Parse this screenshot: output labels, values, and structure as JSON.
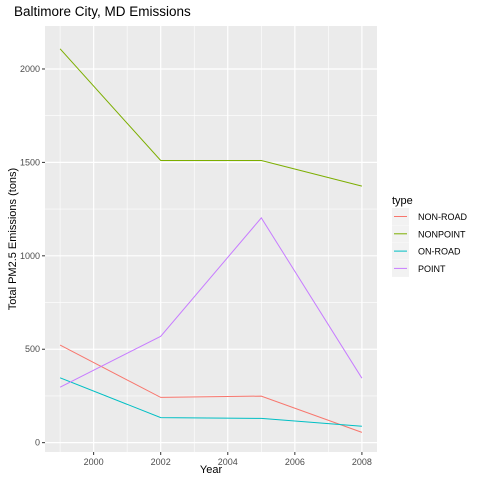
{
  "chart_data": {
    "type": "line",
    "title": "Baltimore City, MD Emissions",
    "xlabel": "Year",
    "ylabel": "Total PM2.5 Emissions (tons)",
    "x": [
      1999,
      2002,
      2005,
      2008
    ],
    "xlim": [
      1998.55,
      2008.45
    ],
    "ylim": [
      -50,
      2230
    ],
    "x_ticks": [
      2000,
      2002,
      2004,
      2006,
      2008
    ],
    "y_ticks": [
      0,
      500,
      1000,
      1500,
      2000
    ],
    "grid": true,
    "legend": {
      "title": "type",
      "position": "right"
    },
    "series": [
      {
        "name": "NON-ROAD",
        "color": "#F8766D",
        "values": [
          522,
          242,
          249,
          55
        ]
      },
      {
        "name": "NONPOINT",
        "color": "#7CAE00",
        "values": [
          2108,
          1510,
          1510,
          1373
        ]
      },
      {
        "name": "ON-ROAD",
        "color": "#00BFC4",
        "values": [
          347,
          134,
          130,
          88
        ]
      },
      {
        "name": "POINT",
        "color": "#C77CFF",
        "values": [
          297,
          569,
          1203,
          345
        ]
      }
    ]
  }
}
